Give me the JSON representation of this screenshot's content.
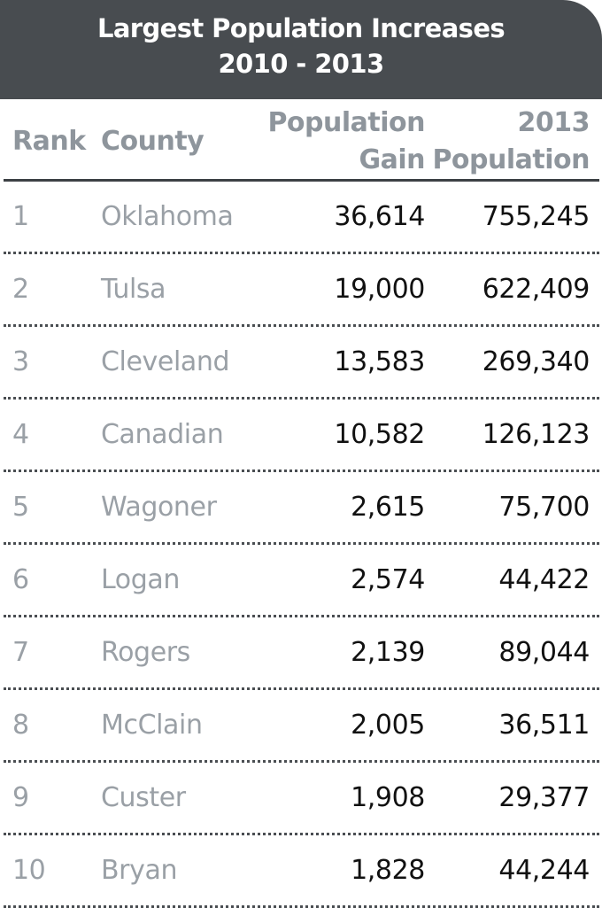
{
  "title": {
    "line1": "Largest Population Increases",
    "line2": "2010 - 2013"
  },
  "columns": {
    "rank": "Rank",
    "county": "County",
    "gain_line1": "Population",
    "gain_line2": "Gain",
    "pop_line1": "2013",
    "pop_line2": "Population"
  },
  "colors": {
    "header_bg": "#484c50",
    "label_gray": "#9aa0a6",
    "value_black": "#111111"
  },
  "chart_data": {
    "type": "table",
    "title": "Largest Population Increases 2010 - 2013",
    "columns": [
      "Rank",
      "County",
      "Population Gain",
      "2013 Population"
    ],
    "rows": [
      {
        "rank": "1",
        "county": "Oklahoma",
        "gain": "36,614",
        "pop": "755,245"
      },
      {
        "rank": "2",
        "county": "Tulsa",
        "gain": "19,000",
        "pop": "622,409"
      },
      {
        "rank": "3",
        "county": "Cleveland",
        "gain": "13,583",
        "pop": "269,340"
      },
      {
        "rank": "4",
        "county": "Canadian",
        "gain": "10,582",
        "pop": "126,123"
      },
      {
        "rank": "5",
        "county": "Wagoner",
        "gain": "2,615",
        "pop": "75,700"
      },
      {
        "rank": "6",
        "county": "Logan",
        "gain": "2,574",
        "pop": "44,422"
      },
      {
        "rank": "7",
        "county": "Rogers",
        "gain": "2,139",
        "pop": "89,044"
      },
      {
        "rank": "8",
        "county": "McClain",
        "gain": "2,005",
        "pop": "36,511"
      },
      {
        "rank": "9",
        "county": "Custer",
        "gain": "1,908",
        "pop": "29,377"
      },
      {
        "rank": "10",
        "county": "Bryan",
        "gain": "1,828",
        "pop": "44,244"
      }
    ]
  }
}
